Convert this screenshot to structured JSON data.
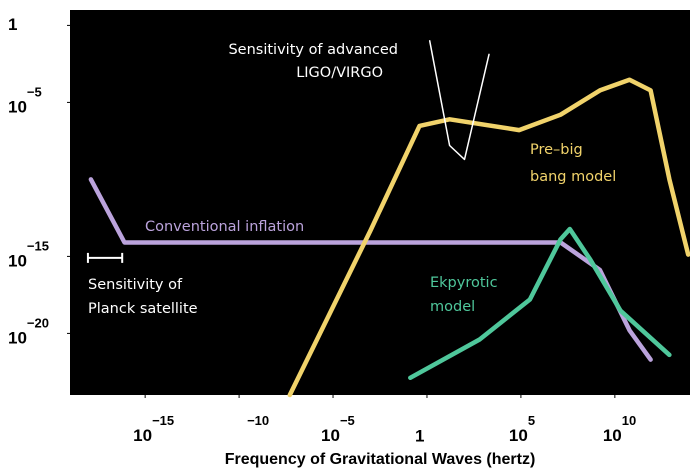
{
  "chart_data": {
    "type": "line",
    "xlabel": "Frequency of Gravitational Waves (hertz)",
    "xscale": "log",
    "yscale": "log",
    "xlim": [
      1e-19,
      100000000000000.0
    ],
    "ylim": [
      1e-24,
      10
    ],
    "xticks": [
      {
        "value": 1e-15,
        "label": "10−15"
      },
      {
        "value": 1e-10,
        "label": "−10"
      },
      {
        "value": 1e-05,
        "label": "10−5"
      },
      1,
      {
        "value": 100000.0,
        "label": "105"
      },
      {
        "value": 10000000000.0,
        "label": "1010"
      }
    ],
    "yticks": [
      1,
      {
        "value": 1e-05,
        "label": "10−5"
      },
      {
        "value": 1e-15,
        "label": "10−15"
      },
      {
        "value": 1e-20,
        "label": "10−20"
      }
    ],
    "series": [
      {
        "annotation": [
          "Conventional inflation"
        ],
        "color": "#bba3dc",
        "x": [
          1.3e-18,
          8e-17,
          13000000.0,
          1600000000.0,
          60000000000.0,
          800000000000.0
        ],
        "values": [
          1e-10,
          8e-15,
          8e-15,
          1.3e-16,
          1.6e-20,
          2e-22
        ]
      },
      {
        "annotation": [
          "Pre–big",
          "bang model"
        ],
        "color": "#f1d36b",
        "x": [
          5e-08,
          0.001,
          0.4,
          16,
          80000.0,
          13000000.0,
          1600000000.0,
          60000000000.0,
          800000000000.0,
          8000000000000.0,
          80000000000000.0
        ],
        "values": [
          1e-24,
          5e-14,
          3e-07,
          8e-07,
          1.6e-07,
          1.6e-06,
          6e-05,
          0.0003,
          6e-05,
          1e-10,
          1.3e-15
        ]
      },
      {
        "annotation": [
          "Ekpyrotic",
          "model"
        ],
        "color": "#4fc79b",
        "x": [
          0.13,
          630,
          300000.0,
          13000000.0,
          40000000.0,
          500000000.0,
          20000000000.0,
          8000000000000.0
        ],
        "values": [
          1.3e-23,
          4e-21,
          1.6e-18,
          1.3e-14,
          6e-14,
          6e-16,
          3e-19,
          4e-22
        ]
      },
      {
        "annotation": [
          "Sensitivity of advanced",
          "LIGO/VIRGO"
        ],
        "color": "#ffffff",
        "x": [
          1.4,
          16,
          100,
          2000
        ],
        "values": [
          0.1,
          1.6e-08,
          2e-09,
          0.013
        ]
      }
    ],
    "range": {
      "annotation": [
        "Sensitivity of",
        "Planck satellite"
      ],
      "color": "#ffffff",
      "x": [
        9e-19,
        6e-17
      ],
      "value": 8e-16
    }
  }
}
